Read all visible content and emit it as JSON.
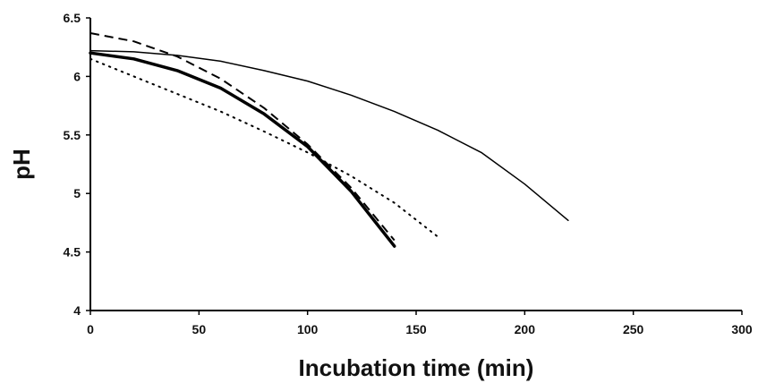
{
  "chart_data": {
    "type": "line",
    "title": "",
    "xlabel": "Incubation time (min)",
    "ylabel": "pH",
    "xlim": [
      0,
      300
    ],
    "ylim": [
      4,
      6.5
    ],
    "x_ticks": [
      0,
      50,
      100,
      150,
      200,
      250,
      300
    ],
    "y_ticks": [
      4,
      4.5,
      5,
      5.5,
      6,
      6.5
    ],
    "x_tick_labels": [
      "0",
      "50",
      "100",
      "150",
      "200",
      "250",
      "300"
    ],
    "y_tick_labels": [
      "4",
      "4.5",
      "5",
      "5.5",
      "6",
      "6.5"
    ],
    "grid": false,
    "legend": "none",
    "series": [
      {
        "style": "thin-solid",
        "color": "#000000",
        "x": [
          0,
          20,
          40,
          60,
          80,
          100,
          120,
          140,
          160,
          180,
          200,
          220
        ],
        "y": [
          6.22,
          6.21,
          6.18,
          6.13,
          6.05,
          5.96,
          5.84,
          5.7,
          5.54,
          5.35,
          5.08,
          4.77
        ]
      },
      {
        "style": "thick-solid",
        "color": "#000000",
        "x": [
          0,
          20,
          40,
          60,
          80,
          100,
          120,
          140
        ],
        "y": [
          6.2,
          6.15,
          6.05,
          5.9,
          5.68,
          5.4,
          5.02,
          4.55
        ]
      },
      {
        "style": "dashed",
        "color": "#000000",
        "x": [
          0,
          20,
          40,
          60,
          80,
          100,
          120,
          140
        ],
        "y": [
          6.37,
          6.3,
          6.17,
          5.98,
          5.73,
          5.42,
          5.05,
          4.6
        ]
      },
      {
        "style": "dotted",
        "color": "#000000",
        "x": [
          0,
          20,
          40,
          60,
          80,
          100,
          120,
          140,
          160
        ],
        "y": [
          6.15,
          6.0,
          5.85,
          5.7,
          5.53,
          5.35,
          5.15,
          4.92,
          4.63
        ]
      }
    ]
  }
}
